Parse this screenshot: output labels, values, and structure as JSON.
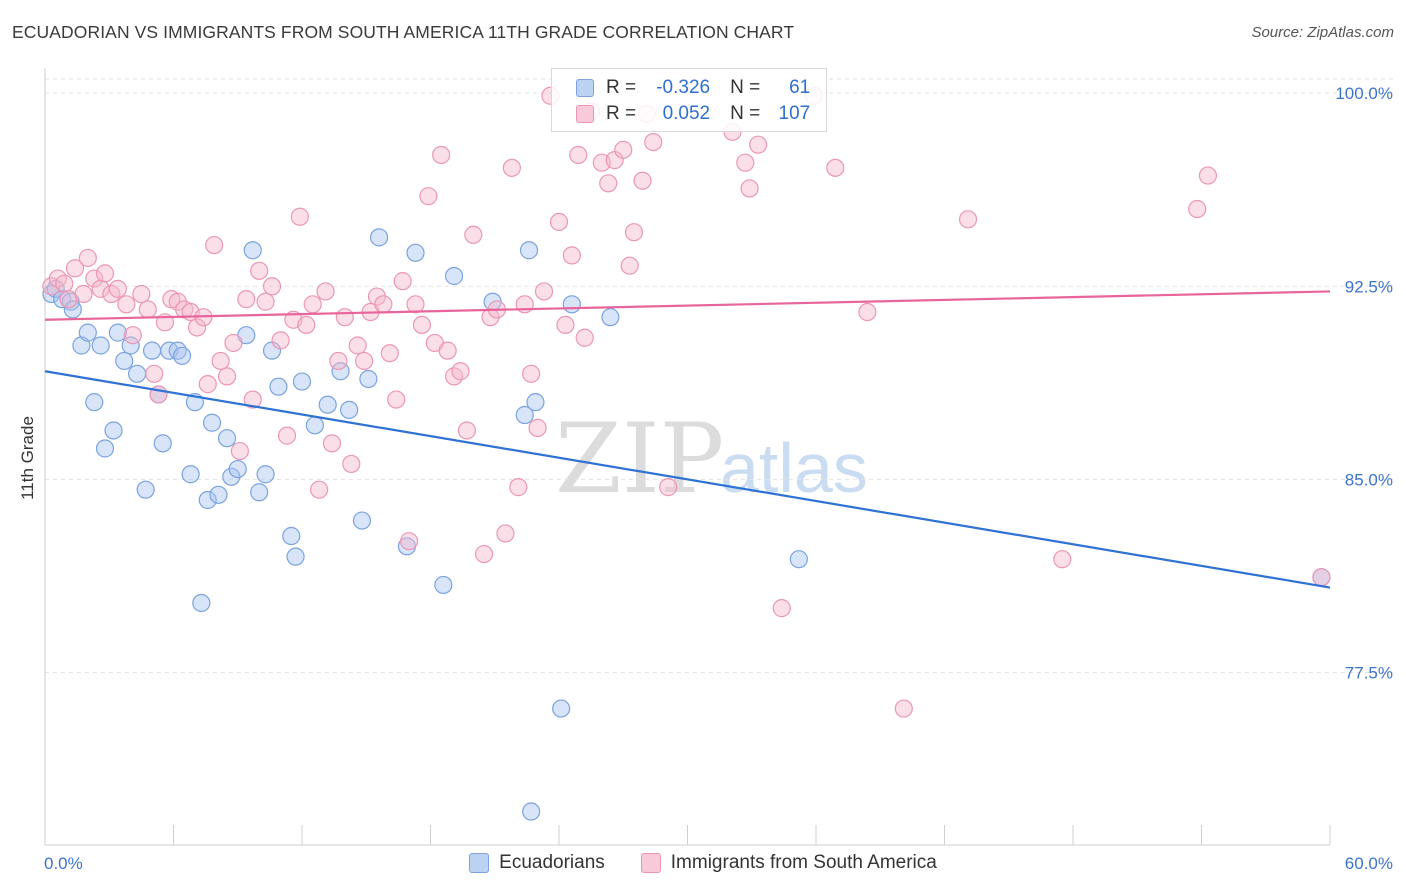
{
  "title": "ECUADORIAN VS IMMIGRANTS FROM SOUTH AMERICA 11TH GRADE CORRELATION CHART",
  "source": "Source: ZipAtlas.com",
  "watermark": {
    "zip": "ZIP",
    "atlas": "atlas"
  },
  "legend": {
    "r_label": "R =",
    "n_label": "N =",
    "rows": [
      {
        "r": "-0.326",
        "n": "61"
      },
      {
        "r": "0.052",
        "n": "107"
      }
    ]
  },
  "bottom_legend": {
    "a": "Ecuadorians",
    "b": "Immigrants from South America"
  },
  "colors": {
    "blue_fill": "#a8c4ef",
    "blue_stroke": "#7aa3e0",
    "blue_line": "#2f72d6",
    "pink_fill": "#f5b8cc",
    "pink_stroke": "#eb97b4",
    "pink_line": "#e8649a",
    "axis_label": "#3d74cc",
    "grid": "#e2e2e2"
  },
  "chart_data": {
    "type": "scatter",
    "title": "ECUADORIAN VS IMMIGRANTS FROM SOUTH AMERICA 11TH GRADE CORRELATION CHART",
    "xlabel": "",
    "ylabel": "11th Grade",
    "xlim": [
      0,
      60
    ],
    "ylim": [
      70.8,
      100.9
    ],
    "x_tick_labels": [
      "0.0%",
      "60.0%"
    ],
    "y_ticks": [
      77.5,
      85.0,
      92.5,
      100.0
    ],
    "y_tick_labels": [
      "77.5%",
      "85.0%",
      "92.5%",
      "100.0%"
    ],
    "grid": true,
    "legend_position": "top-center",
    "series": [
      {
        "name": "Ecuadorians",
        "color": "#a8c4ef",
        "trend": [
          [
            0,
            89.2
          ],
          [
            60,
            80.8
          ]
        ],
        "points": [
          [
            0.3,
            92.2
          ],
          [
            0.5,
            92.4
          ],
          [
            0.8,
            92.0
          ],
          [
            1.2,
            91.9
          ],
          [
            1.3,
            91.6
          ],
          [
            1.7,
            90.2
          ],
          [
            2.0,
            90.7
          ],
          [
            2.3,
            88.0
          ],
          [
            2.6,
            90.2
          ],
          [
            2.8,
            86.2
          ],
          [
            3.2,
            86.9
          ],
          [
            3.4,
            90.7
          ],
          [
            3.7,
            89.6
          ],
          [
            4.0,
            90.2
          ],
          [
            4.3,
            89.1
          ],
          [
            4.7,
            84.6
          ],
          [
            5.0,
            90.0
          ],
          [
            5.3,
            88.3
          ],
          [
            5.5,
            86.4
          ],
          [
            5.8,
            90.0
          ],
          [
            6.2,
            90.0
          ],
          [
            6.4,
            89.8
          ],
          [
            6.8,
            85.2
          ],
          [
            7.0,
            88.0
          ],
          [
            7.3,
            80.2
          ],
          [
            7.6,
            84.2
          ],
          [
            7.8,
            87.2
          ],
          [
            8.1,
            84.4
          ],
          [
            8.5,
            86.6
          ],
          [
            8.7,
            85.1
          ],
          [
            9.0,
            85.4
          ],
          [
            9.4,
            90.6
          ],
          [
            9.7,
            93.9
          ],
          [
            10.0,
            84.5
          ],
          [
            10.3,
            85.2
          ],
          [
            10.6,
            90.0
          ],
          [
            10.9,
            88.6
          ],
          [
            11.5,
            82.8
          ],
          [
            11.7,
            82.0
          ],
          [
            12.0,
            88.8
          ],
          [
            12.6,
            87.1
          ],
          [
            13.2,
            87.9
          ],
          [
            13.8,
            89.2
          ],
          [
            14.2,
            87.7
          ],
          [
            14.8,
            83.4
          ],
          [
            15.1,
            88.9
          ],
          [
            15.6,
            94.4
          ],
          [
            16.9,
            82.4
          ],
          [
            17.3,
            93.8
          ],
          [
            18.6,
            80.9
          ],
          [
            19.1,
            92.9
          ],
          [
            20.9,
            91.9
          ],
          [
            22.4,
            87.5
          ],
          [
            22.6,
            93.9
          ],
          [
            22.9,
            88.0
          ],
          [
            22.7,
            72.1
          ],
          [
            24.1,
            76.1
          ],
          [
            24.6,
            91.8
          ],
          [
            26.4,
            91.3
          ],
          [
            35.2,
            81.9
          ],
          [
            59.6,
            81.2
          ]
        ]
      },
      {
        "name": "Immigrants from South America",
        "color": "#f5b8cc",
        "trend": [
          [
            0,
            91.2
          ],
          [
            60,
            92.3
          ]
        ],
        "points": [
          [
            0.3,
            92.5
          ],
          [
            0.6,
            92.8
          ],
          [
            0.9,
            92.6
          ],
          [
            1.1,
            92.0
          ],
          [
            1.4,
            93.2
          ],
          [
            1.8,
            92.2
          ],
          [
            2.0,
            93.6
          ],
          [
            2.3,
            92.8
          ],
          [
            2.6,
            92.4
          ],
          [
            2.8,
            93.0
          ],
          [
            3.1,
            92.2
          ],
          [
            3.4,
            92.4
          ],
          [
            3.8,
            91.8
          ],
          [
            4.1,
            90.6
          ],
          [
            4.5,
            92.2
          ],
          [
            4.8,
            91.6
          ],
          [
            5.1,
            89.1
          ],
          [
            5.3,
            88.3
          ],
          [
            5.6,
            91.1
          ],
          [
            5.9,
            92.0
          ],
          [
            6.2,
            91.9
          ],
          [
            6.5,
            91.6
          ],
          [
            6.8,
            91.5
          ],
          [
            7.1,
            90.9
          ],
          [
            7.4,
            91.3
          ],
          [
            7.6,
            88.7
          ],
          [
            7.9,
            94.1
          ],
          [
            8.2,
            89.6
          ],
          [
            8.5,
            89.0
          ],
          [
            8.8,
            90.3
          ],
          [
            9.1,
            86.1
          ],
          [
            9.4,
            92.0
          ],
          [
            9.7,
            88.1
          ],
          [
            10.0,
            93.1
          ],
          [
            10.3,
            91.9
          ],
          [
            10.6,
            92.5
          ],
          [
            11.0,
            90.4
          ],
          [
            11.3,
            86.7
          ],
          [
            11.6,
            91.2
          ],
          [
            11.9,
            95.2
          ],
          [
            12.2,
            91.0
          ],
          [
            12.5,
            91.8
          ],
          [
            12.8,
            84.6
          ],
          [
            13.1,
            92.3
          ],
          [
            13.4,
            86.4
          ],
          [
            13.7,
            89.6
          ],
          [
            14.0,
            91.3
          ],
          [
            14.3,
            85.6
          ],
          [
            14.6,
            90.2
          ],
          [
            14.9,
            89.6
          ],
          [
            15.2,
            91.5
          ],
          [
            15.5,
            92.1
          ],
          [
            15.8,
            91.8
          ],
          [
            16.1,
            89.9
          ],
          [
            16.4,
            88.1
          ],
          [
            16.7,
            92.7
          ],
          [
            17.0,
            82.6
          ],
          [
            17.3,
            91.8
          ],
          [
            17.6,
            91.0
          ],
          [
            17.9,
            96.0
          ],
          [
            18.2,
            90.3
          ],
          [
            18.5,
            97.6
          ],
          [
            18.8,
            90.0
          ],
          [
            19.1,
            89.0
          ],
          [
            19.4,
            89.2
          ],
          [
            19.7,
            86.9
          ],
          [
            20.0,
            94.5
          ],
          [
            20.5,
            82.1
          ],
          [
            20.8,
            91.3
          ],
          [
            21.1,
            91.6
          ],
          [
            21.5,
            82.9
          ],
          [
            21.8,
            97.1
          ],
          [
            22.1,
            84.7
          ],
          [
            22.4,
            91.8
          ],
          [
            22.7,
            89.1
          ],
          [
            23.0,
            87.0
          ],
          [
            23.3,
            92.3
          ],
          [
            23.6,
            99.9
          ],
          [
            24.0,
            95.0
          ],
          [
            24.3,
            91.0
          ],
          [
            24.6,
            93.7
          ],
          [
            24.9,
            97.6
          ],
          [
            25.2,
            90.5
          ],
          [
            25.5,
            99.3
          ],
          [
            26.0,
            97.3
          ],
          [
            26.3,
            96.5
          ],
          [
            26.6,
            97.4
          ],
          [
            27.0,
            97.8
          ],
          [
            27.3,
            93.3
          ],
          [
            27.5,
            94.6
          ],
          [
            27.9,
            96.6
          ],
          [
            28.1,
            99.2
          ],
          [
            28.4,
            98.1
          ],
          [
            29.1,
            84.7
          ],
          [
            32.1,
            98.5
          ],
          [
            32.7,
            97.3
          ],
          [
            32.9,
            96.3
          ],
          [
            33.3,
            98.0
          ],
          [
            34.4,
            80.0
          ],
          [
            35.9,
            99.9
          ],
          [
            36.9,
            97.1
          ],
          [
            38.4,
            91.5
          ],
          [
            40.1,
            76.1
          ],
          [
            43.1,
            95.1
          ],
          [
            47.5,
            81.9
          ],
          [
            53.8,
            95.5
          ],
          [
            54.3,
            96.8
          ],
          [
            59.6,
            81.2
          ]
        ]
      }
    ]
  }
}
